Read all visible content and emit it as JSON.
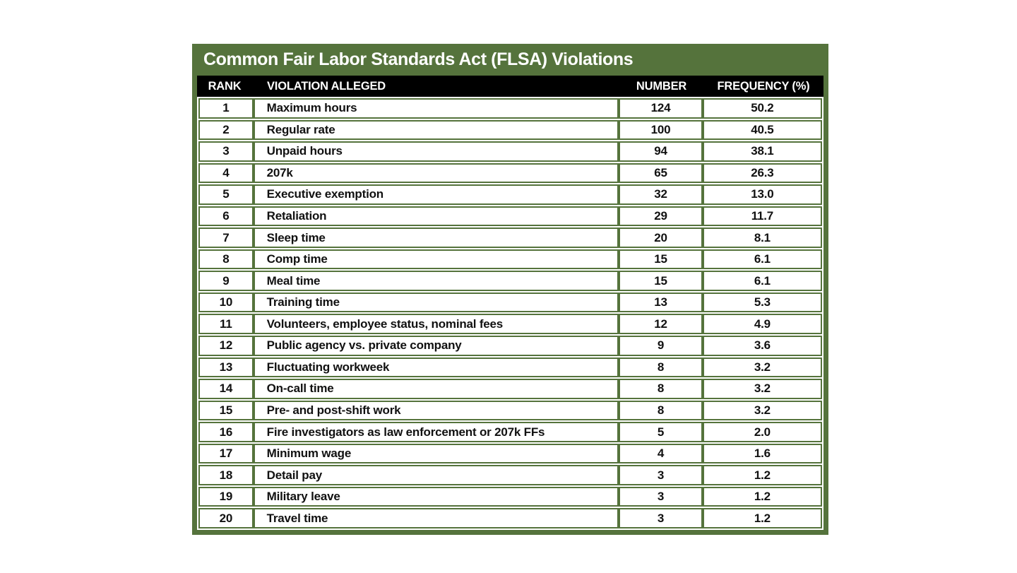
{
  "title": "Common Fair Labor Standards Act (FLSA) Violations",
  "colors": {
    "green": "#55733c",
    "header_bg": "#000000",
    "cell_bg": "#ffffff",
    "title_text": "#ffffff",
    "body_text": "#111111"
  },
  "header": {
    "rank": "RANK",
    "violation": "VIOLATION ALLEGED",
    "number": "NUMBER",
    "frequency": "FREQUENCY (%)"
  },
  "chart_data": {
    "type": "table",
    "title": "Common Fair Labor Standards Act (FLSA) Violations",
    "columns": [
      "RANK",
      "VIOLATION ALLEGED",
      "NUMBER",
      "FREQUENCY (%)"
    ],
    "rows": [
      {
        "rank": "1",
        "violation": "Maximum hours",
        "number": "124",
        "frequency": "50.2"
      },
      {
        "rank": "2",
        "violation": "Regular rate",
        "number": "100",
        "frequency": "40.5"
      },
      {
        "rank": "3",
        "violation": "Unpaid hours",
        "number": "94",
        "frequency": "38.1"
      },
      {
        "rank": "4",
        "violation": "207k",
        "number": "65",
        "frequency": "26.3"
      },
      {
        "rank": "5",
        "violation": "Executive exemption",
        "number": "32",
        "frequency": "13.0"
      },
      {
        "rank": "6",
        "violation": "Retaliation",
        "number": "29",
        "frequency": "11.7"
      },
      {
        "rank": "7",
        "violation": "Sleep time",
        "number": "20",
        "frequency": "8.1"
      },
      {
        "rank": "8",
        "violation": "Comp time",
        "number": "15",
        "frequency": "6.1"
      },
      {
        "rank": "9",
        "violation": "Meal time",
        "number": "15",
        "frequency": "6.1"
      },
      {
        "rank": "10",
        "violation": "Training time",
        "number": "13",
        "frequency": "5.3"
      },
      {
        "rank": "11",
        "violation": "Volunteers, employee status, nominal fees",
        "number": "12",
        "frequency": "4.9"
      },
      {
        "rank": "12",
        "violation": "Public agency vs. private company",
        "number": "9",
        "frequency": "3.6"
      },
      {
        "rank": "13",
        "violation": "Fluctuating workweek",
        "number": "8",
        "frequency": "3.2"
      },
      {
        "rank": "14",
        "violation": "On-call time",
        "number": "8",
        "frequency": "3.2"
      },
      {
        "rank": "15",
        "violation": "Pre- and post-shift work",
        "number": "8",
        "frequency": "3.2"
      },
      {
        "rank": "16",
        "violation": "Fire investigators as law enforcement or 207k FFs",
        "number": "5",
        "frequency": "2.0"
      },
      {
        "rank": "17",
        "violation": "Minimum wage",
        "number": "4",
        "frequency": "1.6"
      },
      {
        "rank": "18",
        "violation": "Detail pay",
        "number": "3",
        "frequency": "1.2"
      },
      {
        "rank": "19",
        "violation": "Military leave",
        "number": "3",
        "frequency": "1.2"
      },
      {
        "rank": "20",
        "violation": "Travel time",
        "number": "3",
        "frequency": "1.2"
      }
    ]
  }
}
